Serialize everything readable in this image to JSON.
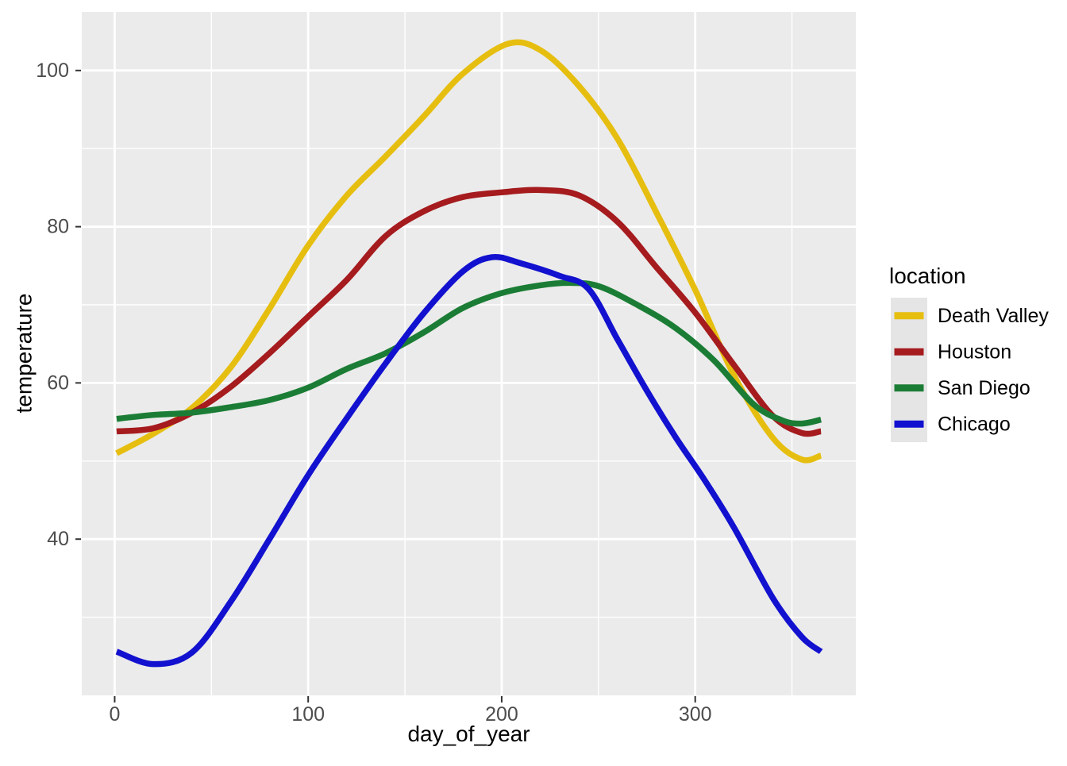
{
  "figure": {
    "background": "#FFFFFF"
  },
  "chart_data": {
    "type": "line",
    "title": "",
    "xlabel": "day_of_year",
    "ylabel": "temperature",
    "x_axis": {
      "ticks": [
        0,
        100,
        200,
        300
      ],
      "minor_ticks": [
        50,
        150,
        250,
        350
      ],
      "range": [
        -17,
        383
      ]
    },
    "y_axis": {
      "ticks": [
        40,
        60,
        80,
        100
      ],
      "minor_ticks": [
        30,
        50,
        70,
        90
      ],
      "range": [
        20,
        107.5
      ]
    },
    "style": {
      "panel_bg": "#EBEBEB",
      "grid_color": "#FFFFFF",
      "tick_color": "#333333",
      "tick_label_color": "#4D4D4D",
      "legend_key_bg": "#E5E5E5"
    },
    "legend": {
      "title": "location",
      "position": "right",
      "entries": [
        "Death Valley",
        "Houston",
        "San Diego",
        "Chicago"
      ]
    },
    "series": [
      {
        "name": "Death Valley",
        "color": "#E6BE10",
        "x": [
          1,
          20,
          40,
          60,
          80,
          100,
          120,
          140,
          160,
          180,
          203,
          220,
          240,
          260,
          280,
          300,
          320,
          340,
          355,
          365
        ],
        "y": [
          51.0,
          53.5,
          56.8,
          62.0,
          69.5,
          77.6,
          84.0,
          89.0,
          94.2,
          99.6,
          103.4,
          102.6,
          98.0,
          91.2,
          81.8,
          71.9,
          61.0,
          53.0,
          50.2,
          50.7
        ]
      },
      {
        "name": "Houston",
        "color": "#A51B1E",
        "x": [
          1,
          20,
          40,
          60,
          80,
          100,
          120,
          140,
          160,
          180,
          200,
          220,
          240,
          260,
          280,
          300,
          320,
          340,
          355,
          365
        ],
        "y": [
          53.8,
          54.2,
          56.2,
          59.5,
          63.8,
          68.5,
          73.2,
          78.8,
          82.0,
          83.8,
          84.4,
          84.7,
          84.0,
          80.6,
          74.8,
          69.0,
          62.3,
          55.8,
          53.6,
          53.8
        ]
      },
      {
        "name": "San Diego",
        "color": "#1B7D35",
        "x": [
          1,
          20,
          40,
          60,
          80,
          100,
          120,
          140,
          160,
          180,
          200,
          220,
          235,
          250,
          270,
          290,
          310,
          330,
          345,
          355,
          365
        ],
        "y": [
          55.4,
          55.9,
          56.2,
          56.9,
          57.8,
          59.4,
          61.8,
          63.8,
          66.5,
          69.6,
          71.5,
          72.5,
          72.8,
          72.4,
          70.0,
          67.0,
          62.8,
          57.3,
          55.2,
          54.8,
          55.3
        ]
      },
      {
        "name": "Chicago",
        "color": "#1211CF",
        "x": [
          1,
          20,
          40,
          60,
          80,
          100,
          120,
          140,
          160,
          180,
          195,
          210,
          230,
          245,
          260,
          275,
          290,
          305,
          320,
          340,
          355,
          365
        ],
        "y": [
          25.6,
          24.0,
          25.5,
          32.0,
          40.0,
          48.2,
          55.5,
          62.5,
          69.0,
          74.3,
          76.1,
          75.3,
          73.7,
          72.0,
          65.5,
          59.0,
          53.0,
          47.5,
          41.5,
          32.5,
          27.5,
          25.6
        ]
      }
    ]
  }
}
